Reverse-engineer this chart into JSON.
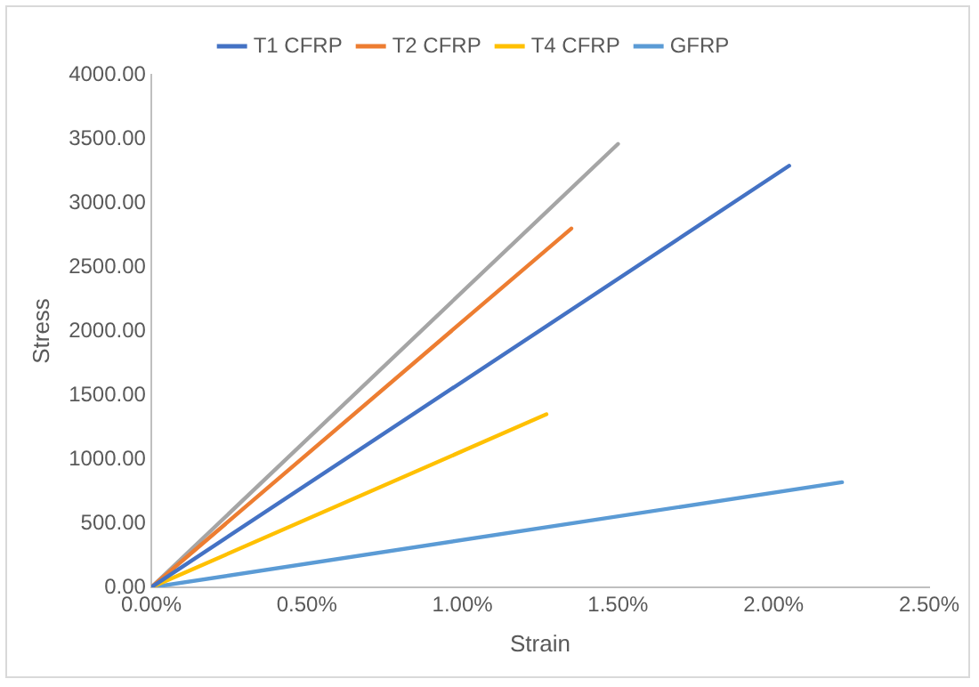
{
  "chart_data": {
    "type": "line",
    "xlabel": "Strain",
    "ylabel": "Stress",
    "series": [
      {
        "name": "T1 CFRP",
        "color": "#4472c4",
        "x": [
          0,
          2.05
        ],
        "values": [
          0,
          3290
        ]
      },
      {
        "name": "T2 CFRP",
        "color": "#ed7d31",
        "x": [
          0,
          1.35
        ],
        "values": [
          0,
          2800
        ]
      },
      {
        "color": "#a5a5a5",
        "x": [
          0,
          1.5
        ],
        "values": [
          0,
          3460
        ]
      },
      {
        "name": "T4 CFRP",
        "color": "#ffc000",
        "x": [
          0,
          1.27
        ],
        "values": [
          0,
          1350
        ]
      },
      {
        "name": "GFRP",
        "color": "#5b9bd5",
        "x": [
          0,
          2.22
        ],
        "values": [
          0,
          820
        ]
      }
    ],
    "xlim": [
      0,
      2.5
    ],
    "xticks": [
      {
        "value": 0,
        "label": "0.00%"
      },
      {
        "value": 0.5,
        "label": "0.50%"
      },
      {
        "value": 1,
        "label": "1.00%"
      },
      {
        "value": 1.5,
        "label": "1.50%"
      },
      {
        "value": 2,
        "label": "2.00%"
      },
      {
        "value": 2.5,
        "label": "2.50%"
      }
    ],
    "ylim": [
      0,
      4000
    ],
    "yticks": [
      {
        "value": 0,
        "label": "0.00"
      },
      {
        "value": 500,
        "label": "500.00"
      },
      {
        "value": 1000,
        "label": "1000.00"
      },
      {
        "value": 1500,
        "label": "1500.00"
      },
      {
        "value": 2000,
        "label": "2000.00"
      },
      {
        "value": 2500,
        "label": "2500.00"
      },
      {
        "value": 3000,
        "label": "3000.00"
      },
      {
        "value": 3500,
        "label": "3500.00"
      },
      {
        "value": 4000,
        "label": "4000.00"
      }
    ],
    "grid": false,
    "legend": "top",
    "marker": "none",
    "line_style": "solid"
  }
}
